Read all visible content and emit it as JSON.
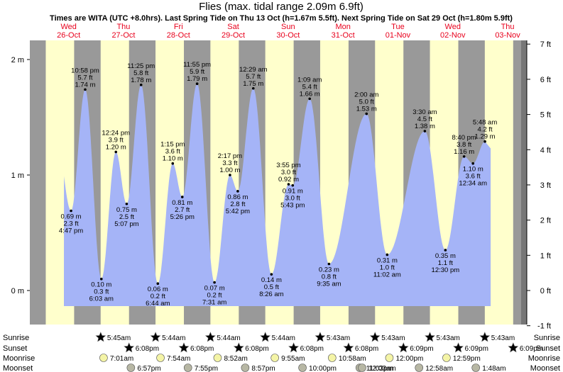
{
  "chart_data": {
    "type": "area",
    "title": "Flies (max. tidal range 2.09m 6.9ft)",
    "subtitle": "Times are WITA (UTC +8.0hrs). Last Spring Tide on Thu 13 Oct (h=1.67m 5.5ft). Next Spring Tide on Sat 29 Oct (h=1.80m 5.9ft)",
    "days": [
      {
        "dow": "Wed",
        "date": "26-Oct"
      },
      {
        "dow": "Thu",
        "date": "27-Oct"
      },
      {
        "dow": "Fri",
        "date": "28-Oct"
      },
      {
        "dow": "Sat",
        "date": "29-Oct"
      },
      {
        "dow": "Sun",
        "date": "30-Oct"
      },
      {
        "dow": "Mon",
        "date": "31-Oct"
      },
      {
        "dow": "Tue",
        "date": "01-Nov"
      },
      {
        "dow": "Wed",
        "date": "02-Nov"
      },
      {
        "dow": "Thu",
        "date": "03-Nov"
      }
    ],
    "y_left_ticks": [
      {
        "v": 0,
        "label": "0 m"
      },
      {
        "v": 1,
        "label": "1 m"
      },
      {
        "v": 2,
        "label": "2 m"
      }
    ],
    "y_right_ticks": [
      {
        "ft": -1,
        "label": "-1 ft"
      },
      {
        "ft": 0,
        "label": "0 ft"
      },
      {
        "ft": 1,
        "label": "1 ft"
      },
      {
        "ft": 2,
        "label": "2 ft"
      },
      {
        "ft": 3,
        "label": "3 ft"
      },
      {
        "ft": 4,
        "label": "4 ft"
      },
      {
        "ft": 5,
        "label": "5 ft"
      },
      {
        "ft": 6,
        "label": "6 ft"
      },
      {
        "ft": 7,
        "label": "7 ft"
      }
    ],
    "ylim_m": [
      -0.31,
      2.2
    ],
    "tides": [
      {
        "type": "low",
        "day": 0,
        "h": 0.69,
        "lines": [
          "0.69 m",
          "2.3 ft",
          "4:47 pm"
        ]
      },
      {
        "type": "high",
        "day": 0,
        "h": 1.74,
        "lines": [
          "10:58 pm",
          "5.7 ft",
          "1.74 m"
        ]
      },
      {
        "type": "low",
        "day": 1,
        "h": 0.1,
        "lines": [
          "0.10 m",
          "0.3 ft",
          "6:03 am"
        ]
      },
      {
        "type": "high",
        "day": 1,
        "h": 1.2,
        "lines": [
          "12:24 pm",
          "3.9 ft",
          "1.20 m"
        ]
      },
      {
        "type": "low",
        "day": 1,
        "h": 0.75,
        "lines": [
          "0.75 m",
          "2.5 ft",
          "5:07 pm"
        ]
      },
      {
        "type": "high",
        "day": 1,
        "h": 1.78,
        "lines": [
          "11:25 pm",
          "5.8 ft",
          "1.78 m"
        ]
      },
      {
        "type": "low",
        "day": 2,
        "h": 0.06,
        "lines": [
          "0.06 m",
          "0.2 ft",
          "6:44 am"
        ]
      },
      {
        "type": "high",
        "day": 2,
        "h": 1.1,
        "lines": [
          "1:15 pm",
          "3.6 ft",
          "1.10 m"
        ]
      },
      {
        "type": "low",
        "day": 2,
        "h": 0.81,
        "lines": [
          "0.81 m",
          "2.7 ft",
          "5:26 pm"
        ]
      },
      {
        "type": "high",
        "day": 2,
        "h": 1.79,
        "lines": [
          "11:55 pm",
          "5.9 ft",
          "1.79 m"
        ]
      },
      {
        "type": "low",
        "day": 3,
        "h": 0.07,
        "lines": [
          "0.07 m",
          "0.2 ft",
          "7:31 am"
        ]
      },
      {
        "type": "high",
        "day": 3,
        "h": 1.0,
        "lines": [
          "2:17 pm",
          "3.3 ft",
          "1.00 m"
        ]
      },
      {
        "type": "low",
        "day": 3,
        "h": 0.86,
        "lines": [
          "0.86 m",
          "2.8 ft",
          "5:42 pm"
        ]
      },
      {
        "type": "high",
        "day": 4,
        "h": 1.75,
        "lines": [
          "12:29 am",
          "5.7 ft",
          "1.75 m"
        ]
      },
      {
        "type": "low",
        "day": 4,
        "h": 0.14,
        "lines": [
          "0.14 m",
          "0.5 ft",
          "8:26 am"
        ]
      },
      {
        "type": "high",
        "day": 4,
        "h": 0.92,
        "lines": [
          "3:55 pm",
          "3.0 ft",
          "0.92 m"
        ]
      },
      {
        "type": "low",
        "day": 4,
        "h": 0.91,
        "lines": [
          "0.91 m",
          "3.0 ft",
          "5:43 pm"
        ]
      },
      {
        "type": "high",
        "day": 5,
        "h": 1.66,
        "lines": [
          "1:09 am",
          "5.4 ft",
          "1.66 m"
        ]
      },
      {
        "type": "low",
        "day": 5,
        "h": 0.23,
        "lines": [
          "0.23 m",
          "0.8 ft",
          "9:35 am"
        ]
      },
      {
        "type": "high",
        "day": 6,
        "h": 1.53,
        "lines": [
          "2:00 am",
          "5.0 ft",
          "1.53 m"
        ]
      },
      {
        "type": "low",
        "day": 6,
        "h": 0.31,
        "lines": [
          "0.31 m",
          "1.0 ft",
          "11:02 am"
        ]
      },
      {
        "type": "high",
        "day": 7,
        "h": 1.38,
        "lines": [
          "3:30 am",
          "4.5 ft",
          "1.38 m"
        ]
      },
      {
        "type": "low",
        "day": 7,
        "h": 0.35,
        "lines": [
          "0.35 m",
          "1.1 ft",
          "12:30 pm"
        ]
      },
      {
        "type": "high",
        "day": 7,
        "h": 1.16,
        "lines": [
          "8:40 pm",
          "3.8 ft",
          "1.16 m"
        ]
      },
      {
        "type": "low",
        "day": 8,
        "h": 1.1,
        "lines": [
          "1.10 m",
          "3.6 ft",
          "12:34 am"
        ]
      },
      {
        "type": "high",
        "day": 8,
        "h": 1.29,
        "lines": [
          "5:48 am",
          "4.2 ft",
          "1.29 m"
        ]
      }
    ],
    "astro_rows": [
      {
        "key": "sunrise",
        "label": "Sunrise",
        "times": [
          "5:45am",
          "5:44am",
          "5:44am",
          "5:44am",
          "5:43am",
          "5:43am",
          "5:43am",
          "5:43am"
        ]
      },
      {
        "key": "sunset",
        "label": "Sunset",
        "times": [
          "6:08pm",
          "6:08pm",
          "6:08pm",
          "6:08pm",
          "6:08pm",
          "6:09pm",
          "6:09pm",
          "6:09pm"
        ]
      },
      {
        "key": "moonrise",
        "label": "Moonrise",
        "times": [
          "7:01am",
          "7:54am",
          "8:52am",
          "9:55am",
          "10:58am",
          "12:00pm",
          "12:59pm"
        ]
      },
      {
        "key": "moonset",
        "label": "Moonset",
        "times": [
          "6:57pm",
          "7:55pm",
          "8:57pm",
          "10:00pm",
          "11:03pm",
          "12:03am",
          "12:58am",
          "1:48am"
        ]
      }
    ],
    "colors": {
      "water": "#a5b4f7",
      "day_band": "#ffffcc",
      "night_band": "#999999",
      "date_red": "#e8001c",
      "sun": "#c8bf2f",
      "sunset": "#c8362f",
      "moonrise": "#f4f4a6",
      "moonset": "#b7b7a4",
      "ink": "#000000"
    }
  }
}
